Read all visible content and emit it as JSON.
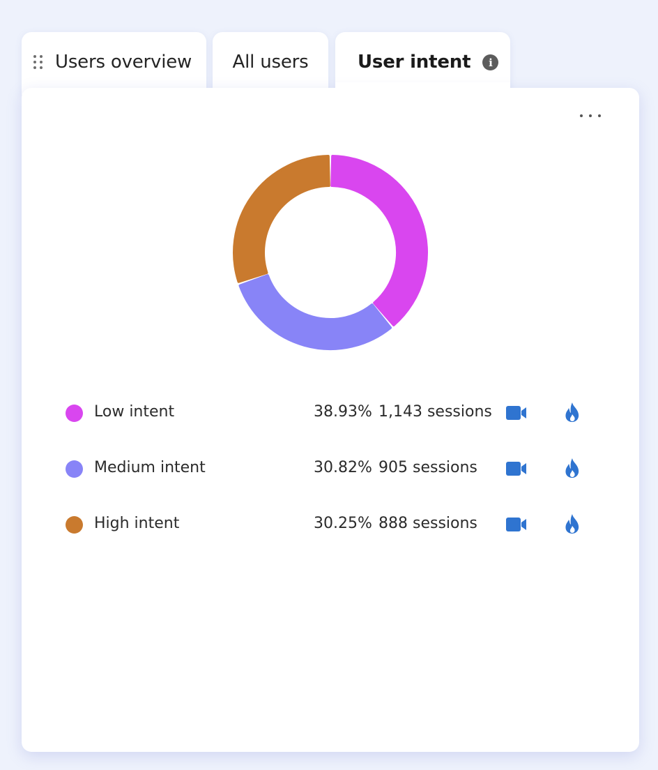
{
  "tabs": [
    {
      "label": "Users overview"
    },
    {
      "label": "All users"
    },
    {
      "label": "User intent"
    }
  ],
  "card": {
    "more_label": "More options"
  },
  "chart_data": {
    "type": "pie",
    "categories": [
      "Low intent",
      "Medium intent",
      "High intent"
    ],
    "values": [
      38.93,
      30.82,
      30.25
    ],
    "sessions": [
      1143,
      905,
      888
    ],
    "colors": [
      "#d946ef",
      "#8884f7",
      "#c97a2e"
    ]
  },
  "legend": [
    {
      "label": "Low intent",
      "percent": "38.93%",
      "sessions": "1,143 sessions",
      "color": "#d946ef"
    },
    {
      "label": "Medium intent",
      "percent": "30.82%",
      "sessions": "905 sessions",
      "color": "#8884f7"
    },
    {
      "label": "High intent",
      "percent": "30.25%",
      "sessions": "888 sessions",
      "color": "#c97a2e"
    }
  ],
  "icons": {
    "video": "video-camera-icon",
    "heatmap": "flame-icon",
    "accent": "#2f74d0"
  }
}
